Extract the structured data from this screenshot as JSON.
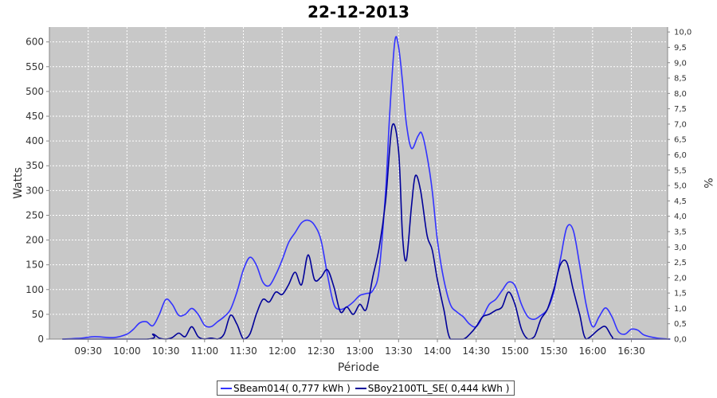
{
  "chart_data": {
    "type": "line",
    "title": "22-12-2013",
    "xlabel": "Période",
    "ylabel": "Watts",
    "y2label": "%",
    "ylim": [
      0,
      630
    ],
    "y2lim": [
      0,
      10.16
    ],
    "yticks": [
      0,
      50,
      100,
      150,
      200,
      250,
      300,
      350,
      400,
      450,
      500,
      550,
      600
    ],
    "y2ticks": [
      "0,0",
      "0,5",
      "1,0",
      "1,5",
      "2,0",
      "2,5",
      "3,0",
      "3,5",
      "4,0",
      "4,5",
      "5,0",
      "5,5",
      "6,0",
      "6,5",
      "7,0",
      "7,5",
      "8,0",
      "8,5",
      "9,0",
      "9,5",
      "10,0"
    ],
    "xlim": [
      "09:00",
      "16:58"
    ],
    "xticks": [
      "09:30",
      "10:00",
      "10:30",
      "11:00",
      "11:30",
      "12:00",
      "12:30",
      "13:00",
      "13:30",
      "14:00",
      "14:30",
      "15:00",
      "15:30",
      "16:00",
      "16:30"
    ],
    "grid": true,
    "legend_position": "bottom",
    "series": [
      {
        "name": "SBeam014( 0,777 kWh )",
        "color": "#3333ff",
        "points": [
          [
            "09:10",
            0
          ],
          [
            "09:25",
            2
          ],
          [
            "09:35",
            5
          ],
          [
            "09:50",
            3
          ],
          [
            "10:00",
            10
          ],
          [
            "10:05",
            20
          ],
          [
            "10:10",
            33
          ],
          [
            "10:15",
            35
          ],
          [
            "10:20",
            27
          ],
          [
            "10:25",
            50
          ],
          [
            "10:30",
            80
          ],
          [
            "10:35",
            70
          ],
          [
            "10:40",
            48
          ],
          [
            "10:45",
            50
          ],
          [
            "10:50",
            62
          ],
          [
            "10:55",
            50
          ],
          [
            "11:00",
            28
          ],
          [
            "11:05",
            25
          ],
          [
            "11:10",
            35
          ],
          [
            "11:15",
            45
          ],
          [
            "11:20",
            60
          ],
          [
            "11:25",
            95
          ],
          [
            "11:30",
            140
          ],
          [
            "11:35",
            165
          ],
          [
            "11:40",
            150
          ],
          [
            "11:45",
            115
          ],
          [
            "11:50",
            108
          ],
          [
            "11:55",
            130
          ],
          [
            "12:00",
            160
          ],
          [
            "12:05",
            195
          ],
          [
            "12:10",
            215
          ],
          [
            "12:15",
            235
          ],
          [
            "12:20",
            240
          ],
          [
            "12:25",
            230
          ],
          [
            "12:30",
            200
          ],
          [
            "12:35",
            130
          ],
          [
            "12:40",
            70
          ],
          [
            "12:45",
            60
          ],
          [
            "12:50",
            65
          ],
          [
            "12:55",
            75
          ],
          [
            "13:00",
            88
          ],
          [
            "13:05",
            92
          ],
          [
            "13:10",
            98
          ],
          [
            "13:15",
            140
          ],
          [
            "13:20",
            300
          ],
          [
            "13:23",
            450
          ],
          [
            "13:27",
            600
          ],
          [
            "13:30",
            590
          ],
          [
            "13:33",
            520
          ],
          [
            "13:36",
            435
          ],
          [
            "13:40",
            385
          ],
          [
            "13:45",
            410
          ],
          [
            "13:48",
            415
          ],
          [
            "13:52",
            370
          ],
          [
            "13:56",
            300
          ],
          [
            "14:00",
            200
          ],
          [
            "14:05",
            120
          ],
          [
            "14:10",
            70
          ],
          [
            "14:15",
            55
          ],
          [
            "14:20",
            45
          ],
          [
            "14:25",
            30
          ],
          [
            "14:30",
            25
          ],
          [
            "14:35",
            45
          ],
          [
            "14:40",
            70
          ],
          [
            "14:45",
            80
          ],
          [
            "14:50",
            98
          ],
          [
            "14:55",
            115
          ],
          [
            "15:00",
            108
          ],
          [
            "15:05",
            70
          ],
          [
            "15:10",
            45
          ],
          [
            "15:15",
            40
          ],
          [
            "15:20",
            48
          ],
          [
            "15:25",
            60
          ],
          [
            "15:30",
            95
          ],
          [
            "15:35",
            160
          ],
          [
            "15:40",
            225
          ],
          [
            "15:45",
            220
          ],
          [
            "15:50",
            150
          ],
          [
            "15:55",
            70
          ],
          [
            "16:00",
            25
          ],
          [
            "16:05",
            45
          ],
          [
            "16:10",
            63
          ],
          [
            "16:15",
            45
          ],
          [
            "16:20",
            15
          ],
          [
            "16:25",
            10
          ],
          [
            "16:30",
            20
          ],
          [
            "16:35",
            18
          ],
          [
            "16:40",
            8
          ],
          [
            "16:50",
            2
          ],
          [
            "17:00",
            0
          ]
        ]
      },
      {
        "name": "SBoy2100TL_SE( 0,444 kWh )",
        "color": "#000099",
        "points": [
          [
            "09:10",
            0
          ],
          [
            "10:15",
            0
          ],
          [
            "10:20",
            10
          ],
          [
            "10:25",
            2
          ],
          [
            "10:30",
            0
          ],
          [
            "10:35",
            3
          ],
          [
            "10:40",
            12
          ],
          [
            "10:45",
            5
          ],
          [
            "10:50",
            25
          ],
          [
            "10:55",
            5
          ],
          [
            "11:00",
            0
          ],
          [
            "11:05",
            2
          ],
          [
            "11:10",
            0
          ],
          [
            "11:15",
            10
          ],
          [
            "11:20",
            48
          ],
          [
            "11:25",
            30
          ],
          [
            "11:30",
            0
          ],
          [
            "11:35",
            10
          ],
          [
            "11:40",
            50
          ],
          [
            "11:45",
            80
          ],
          [
            "11:50",
            75
          ],
          [
            "11:55",
            95
          ],
          [
            "12:00",
            90
          ],
          [
            "12:05",
            110
          ],
          [
            "12:10",
            135
          ],
          [
            "12:15",
            110
          ],
          [
            "12:20",
            170
          ],
          [
            "12:25",
            120
          ],
          [
            "12:30",
            125
          ],
          [
            "12:35",
            140
          ],
          [
            "12:40",
            105
          ],
          [
            "12:45",
            55
          ],
          [
            "12:50",
            65
          ],
          [
            "12:55",
            50
          ],
          [
            "13:00",
            70
          ],
          [
            "13:05",
            60
          ],
          [
            "13:10",
            125
          ],
          [
            "13:15",
            185
          ],
          [
            "13:20",
            280
          ],
          [
            "13:25",
            430
          ],
          [
            "13:30",
            380
          ],
          [
            "13:33",
            210
          ],
          [
            "13:36",
            160
          ],
          [
            "13:40",
            270
          ],
          [
            "13:43",
            330
          ],
          [
            "13:47",
            300
          ],
          [
            "13:52",
            210
          ],
          [
            "13:56",
            180
          ],
          [
            "14:00",
            120
          ],
          [
            "14:05",
            60
          ],
          [
            "14:10",
            0
          ],
          [
            "14:20",
            0
          ],
          [
            "14:25",
            10
          ],
          [
            "14:30",
            25
          ],
          [
            "14:35",
            45
          ],
          [
            "14:40",
            50
          ],
          [
            "14:45",
            58
          ],
          [
            "14:50",
            65
          ],
          [
            "14:55",
            95
          ],
          [
            "15:00",
            70
          ],
          [
            "15:05",
            20
          ],
          [
            "15:10",
            0
          ],
          [
            "15:15",
            5
          ],
          [
            "15:20",
            40
          ],
          [
            "15:25",
            60
          ],
          [
            "15:30",
            100
          ],
          [
            "15:35",
            150
          ],
          [
            "15:40",
            155
          ],
          [
            "15:45",
            100
          ],
          [
            "15:50",
            50
          ],
          [
            "15:55",
            0
          ],
          [
            "16:05",
            20
          ],
          [
            "16:10",
            25
          ],
          [
            "16:15",
            5
          ],
          [
            "16:20",
            0
          ],
          [
            "17:00",
            0
          ]
        ]
      }
    ]
  }
}
